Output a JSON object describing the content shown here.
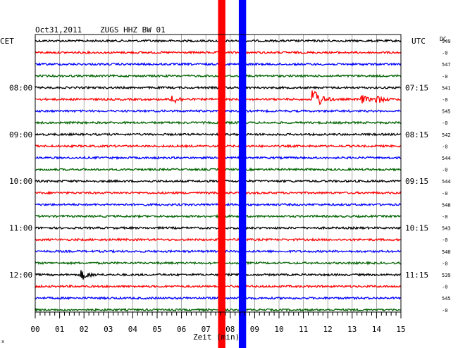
{
  "header": {
    "date": "Oct31,2011",
    "station": "ZUGS HHZ BW 01",
    "left_zone": "CET",
    "right_zone": "UTC",
    "dc_label": "DC"
  },
  "chart_data": {
    "type": "line",
    "title": "Oct31,2011   ZUGS HHZ BW 01",
    "xlabel": "Zeit (min)",
    "xlim": [
      0,
      15
    ],
    "x_ticks": [
      "00",
      "01",
      "02",
      "03",
      "04",
      "05",
      "06",
      "07",
      "08",
      "09",
      "10",
      "11",
      "12",
      "13",
      "14",
      "15"
    ],
    "grid": true,
    "row_count": 24,
    "trace_colors": [
      "#000000",
      "#ff0000",
      "#0000ff",
      "#006400"
    ],
    "cet_hour_labels": [
      {
        "row": 4,
        "label": "08:00"
      },
      {
        "row": 8,
        "label": "09:00"
      },
      {
        "row": 12,
        "label": "10:00"
      },
      {
        "row": 16,
        "label": "11:00"
      },
      {
        "row": 20,
        "label": "12:00"
      }
    ],
    "utc_hour_labels": [
      {
        "row": 4,
        "label": "07:15"
      },
      {
        "row": 8,
        "label": "08:15"
      },
      {
        "row": 12,
        "label": "09:15"
      },
      {
        "row": 16,
        "label": "10:15"
      },
      {
        "row": 20,
        "label": "11:15"
      }
    ],
    "dc_offsets": [
      "549",
      "-0",
      "547",
      "-0",
      "541",
      "-0",
      "545",
      "-0",
      "542",
      "-0",
      "544",
      "-0",
      "544",
      "-0",
      "548",
      "-0",
      "543",
      "-0",
      "540",
      "-0",
      "539",
      "-0",
      "545",
      "-0"
    ],
    "events": [
      {
        "row": 5,
        "minute": 5.6,
        "amplitude": 2.5,
        "note": "small local event"
      },
      {
        "row": 5,
        "minute": 11.4,
        "amplitude": 8.0,
        "note": "large event with coda"
      },
      {
        "row": 5,
        "minute": 13.4,
        "amplitude": 2.0,
        "note": "later arrival"
      },
      {
        "row": 5,
        "minute": 14.0,
        "amplitude": 2.0,
        "note": "later arrival"
      },
      {
        "row": 20,
        "minute": 1.9,
        "amplitude": 2.5,
        "note": "small spike"
      }
    ],
    "saturation_bands": [
      {
        "color": "#ff0000",
        "minutes": [
          7.5,
          7.8
        ]
      },
      {
        "color": "#0000ff",
        "minutes": [
          8.35,
          8.65
        ]
      }
    ]
  }
}
